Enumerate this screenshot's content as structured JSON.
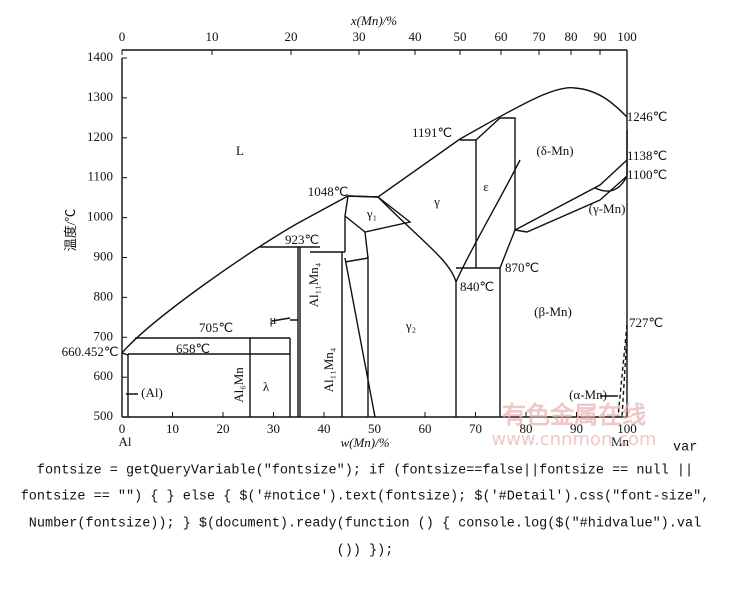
{
  "diagram": {
    "top_axis": {
      "title": "x(Mn)/%",
      "ticks": [
        "0",
        "10",
        "20",
        "30",
        "40",
        "50",
        "60",
        "70",
        "80",
        "90",
        "100"
      ]
    },
    "bottom_axis": {
      "title": "w(Mn)/%",
      "ticks": [
        "0",
        "10",
        "20",
        "30",
        "40",
        "50",
        "60",
        "70",
        "80",
        "90",
        "100"
      ],
      "left_end": "Al",
      "right_end": "Mn"
    },
    "left_axis": {
      "title": "温度/℃",
      "ticks": [
        "1400",
        "1300",
        "1200",
        "1100",
        "1000",
        "900",
        "800",
        "700",
        "600",
        "500"
      ]
    },
    "labels": [
      "L",
      "1191℃",
      "1246℃",
      "(δ-Mn)",
      "1138℃",
      "1100℃",
      "1048℃",
      "γ₁",
      "γ",
      "ε",
      "(γ-Mn)",
      "923℃",
      "Al₁₁Mn₄",
      "870℃",
      "840℃",
      "μ",
      "705℃",
      "γ₂",
      "(β-Mn)",
      "727℃",
      "660.452℃",
      "658℃",
      "Al₆Mn",
      "Al₁₁Mn₄",
      "λ",
      "(Al)",
      "(α-Mn)"
    ]
  },
  "watermark": {
    "title": "有色金属在线",
    "url": "www.cnnmon.com"
  },
  "script_text": [
    "var",
    "fontsize = getQueryVariable(\"fontsize\"); if (fontsize==false||fontsize == null ||",
    "fontsize == \"\") { } else { $('#notice').text(fontsize); $('#Detail').css(\"font-size\",",
    "Number(fontsize)); } $(document).ready(function () { console.log($(\"#hidvalue\").val",
    "()) });"
  ]
}
